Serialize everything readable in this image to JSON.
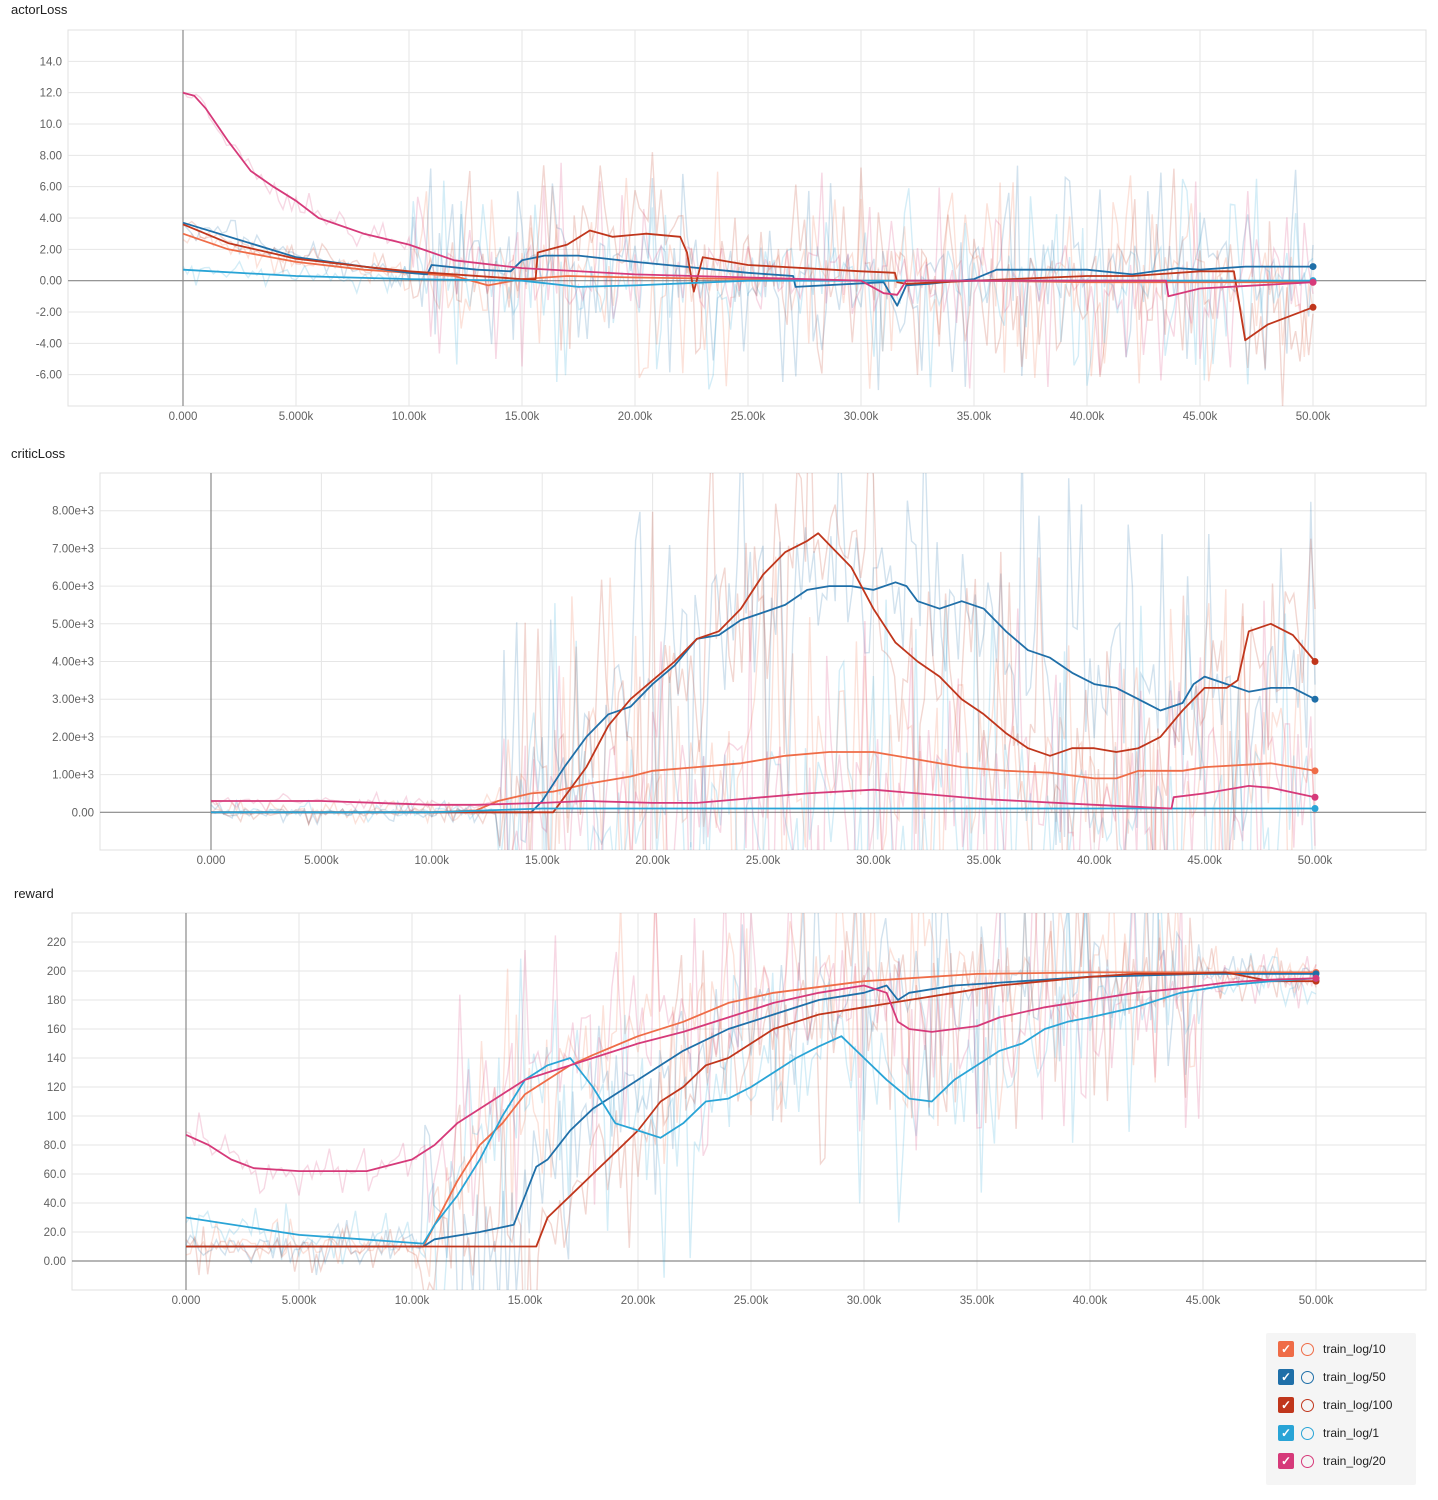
{
  "chart_data": [
    {
      "title": "actorLoss",
      "type": "line",
      "x_ticks": [
        "0.000",
        "5.000k",
        "10.00k",
        "15.00k",
        "20.00k",
        "25.00k",
        "30.00k",
        "35.00k",
        "40.00k",
        "45.00k",
        "50.00k"
      ],
      "y_ticks": [
        "14.0",
        "12.0",
        "10.0",
        "8.00",
        "6.00",
        "4.00",
        "2.00",
        "0.00",
        "-2.00",
        "-4.00",
        "-6.00"
      ],
      "xlim": [
        0,
        50000
      ],
      "ylim": [
        -8,
        16
      ],
      "series": [
        {
          "name": "train_log/10",
          "color": "#ef6c47",
          "x": [
            0,
            2000,
            5000,
            8000,
            10000,
            12000,
            13500,
            15000,
            17000,
            20000,
            25000,
            30000,
            35000,
            40000,
            45000,
            50000
          ],
          "y": [
            3.0,
            2.0,
            1.2,
            0.7,
            0.5,
            0.3,
            -0.3,
            0.1,
            0.3,
            0.2,
            0.1,
            0.0,
            0.0,
            -0.1,
            -0.1,
            -0.1
          ]
        },
        {
          "name": "train_log/50",
          "color": "#1f6fa8",
          "x": [
            0,
            5000,
            10000,
            10800,
            11000,
            13000,
            14500,
            15000,
            16000,
            17500,
            20000,
            25000,
            27000,
            27100,
            31000,
            31600,
            32000,
            33000,
            35000,
            36000,
            40000,
            42000,
            44000,
            45000,
            47000,
            50000
          ],
          "y": [
            3.7,
            1.5,
            0.5,
            0.4,
            1.0,
            0.7,
            0.6,
            1.3,
            1.6,
            1.6,
            1.2,
            0.5,
            0.3,
            -0.4,
            -0.1,
            -1.6,
            -0.3,
            -0.2,
            0.1,
            0.7,
            0.7,
            0.4,
            0.8,
            0.7,
            0.9,
            0.9
          ]
        },
        {
          "name": "train_log/100",
          "color": "#c0361c",
          "x": [
            0,
            2000,
            5000,
            8000,
            10000,
            15000,
            15600,
            15700,
            17000,
            18000,
            19000,
            20500,
            22000,
            22300,
            22600,
            23000,
            25000,
            30000,
            31500,
            31600,
            32000,
            35000,
            40000,
            42000,
            45000,
            46500,
            47000,
            47300,
            48000,
            50000
          ],
          "y": [
            3.6,
            2.4,
            1.4,
            0.9,
            0.6,
            0.1,
            0.1,
            1.8,
            2.3,
            3.2,
            2.8,
            3.0,
            2.8,
            1.8,
            -0.7,
            1.5,
            1.0,
            0.6,
            0.5,
            -0.1,
            -0.2,
            0.0,
            0.3,
            0.3,
            0.6,
            0.6,
            -3.8,
            -3.5,
            -2.8,
            -1.7
          ]
        },
        {
          "name": "train_log/1",
          "color": "#29a4d6",
          "x": [
            0,
            5000,
            10000,
            15000,
            17500,
            20000,
            25000,
            30000,
            35000,
            40000,
            45000,
            50000
          ],
          "y": [
            0.7,
            0.3,
            0.1,
            0.0,
            -0.4,
            -0.3,
            0.0,
            0.0,
            0.0,
            0.0,
            0.0,
            0.0
          ]
        },
        {
          "name": "train_log/20",
          "color": "#d63a7a",
          "x": [
            0,
            500,
            1000,
            2000,
            3000,
            4000,
            5000,
            6000,
            8000,
            10000,
            12000,
            15000,
            20000,
            25000,
            30000,
            31000,
            31600,
            32000,
            35000,
            40000,
            43500,
            43600,
            45000,
            50000
          ],
          "y": [
            12.0,
            11.8,
            11.0,
            8.9,
            7.0,
            6.0,
            5.1,
            4.0,
            3.0,
            2.3,
            1.3,
            0.8,
            0.4,
            0.2,
            0.0,
            -0.8,
            -0.9,
            0.0,
            0.0,
            0.0,
            0.0,
            -1.0,
            -0.5,
            -0.1
          ]
        }
      ]
    },
    {
      "title": "criticLoss",
      "type": "line",
      "x_ticks": [
        "0.000",
        "5.000k",
        "10.00k",
        "15.00k",
        "20.00k",
        "25.00k",
        "30.00k",
        "35.00k",
        "40.00k",
        "45.00k",
        "50.00k"
      ],
      "y_ticks": [
        "8.00e+3",
        "7.00e+3",
        "6.00e+3",
        "5.00e+3",
        "4.00e+3",
        "3.00e+3",
        "2.00e+3",
        "1.00e+3",
        "0.00"
      ],
      "xlim": [
        0,
        50000
      ],
      "ylim": [
        -1000,
        9000
      ],
      "series": [
        {
          "name": "train_log/10",
          "color": "#ef6c47",
          "x": [
            0,
            10000,
            12000,
            13000,
            14500,
            15500,
            17000,
            19000,
            20000,
            22000,
            24000,
            26000,
            28000,
            30000,
            32000,
            34000,
            36000,
            38000,
            40000,
            41000,
            42000,
            44000,
            45000,
            48000,
            50000
          ],
          "y": [
            0,
            0,
            50,
            300,
            500,
            550,
            750,
            950,
            1100,
            1200,
            1300,
            1500,
            1600,
            1600,
            1400,
            1200,
            1100,
            1050,
            900,
            900,
            1100,
            1100,
            1200,
            1300,
            1100
          ]
        },
        {
          "name": "train_log/50",
          "color": "#1f6fa8",
          "x": [
            0,
            14500,
            15000,
            16000,
            17000,
            18000,
            19000,
            20000,
            21000,
            22000,
            23000,
            24000,
            25000,
            26000,
            27000,
            28000,
            29000,
            30000,
            31000,
            31500,
            32000,
            33000,
            34000,
            35000,
            36000,
            37000,
            38000,
            39000,
            40000,
            41000,
            42000,
            43000,
            44000,
            44500,
            45000,
            46000,
            47000,
            48000,
            49000,
            50000
          ],
          "y": [
            0,
            0,
            300,
            1200,
            2000,
            2600,
            2800,
            3400,
            3900,
            4600,
            4700,
            5100,
            5300,
            5500,
            5900,
            6000,
            6000,
            5900,
            6100,
            6000,
            5600,
            5400,
            5600,
            5400,
            4800,
            4300,
            4100,
            3700,
            3400,
            3300,
            3000,
            2700,
            2900,
            3400,
            3600,
            3400,
            3200,
            3300,
            3300,
            3000
          ]
        },
        {
          "name": "train_log/100",
          "color": "#c0361c",
          "x": [
            0,
            15500,
            16000,
            17000,
            18000,
            19000,
            20000,
            21000,
            22000,
            23000,
            24000,
            25000,
            26000,
            27000,
            27500,
            28000,
            29000,
            30000,
            31000,
            32000,
            33000,
            34000,
            35000,
            36000,
            37000,
            38000,
            39000,
            40000,
            41000,
            42000,
            43000,
            44000,
            45000,
            46000,
            46500,
            47000,
            48000,
            49000,
            50000
          ],
          "y": [
            0,
            0,
            400,
            1200,
            2300,
            3000,
            3500,
            4000,
            4600,
            4800,
            5400,
            6300,
            6900,
            7200,
            7400,
            7100,
            6500,
            5400,
            4500,
            4000,
            3600,
            3000,
            2600,
            2100,
            1700,
            1500,
            1700,
            1700,
            1600,
            1700,
            2000,
            2700,
            3300,
            3300,
            3500,
            4800,
            5000,
            4700,
            4000
          ]
        },
        {
          "name": "train_log/1",
          "color": "#29a4d6",
          "x": [
            0,
            10000,
            15000,
            20000,
            30000,
            40000,
            50000
          ],
          "y": [
            0,
            0,
            100,
            100,
            100,
            100,
            100
          ]
        },
        {
          "name": "train_log/20",
          "color": "#d63a7a",
          "x": [
            0,
            5000,
            10000,
            12000,
            15000,
            17000,
            20000,
            22000,
            24000,
            27000,
            30000,
            32000,
            35000,
            40000,
            43500,
            43600,
            45000,
            47000,
            48000,
            50000
          ],
          "y": [
            300,
            300,
            200,
            200,
            250,
            300,
            250,
            250,
            350,
            500,
            600,
            500,
            350,
            200,
            100,
            400,
            500,
            700,
            650,
            400
          ]
        }
      ]
    },
    {
      "title": "reward",
      "type": "line",
      "x_ticks": [
        "0.000",
        "5.000k",
        "10.00k",
        "15.00k",
        "20.00k",
        "25.00k",
        "30.00k",
        "35.00k",
        "40.00k",
        "45.00k",
        "50.00k"
      ],
      "y_ticks": [
        "220",
        "200",
        "180",
        "160",
        "140",
        "120",
        "100",
        "80.0",
        "60.0",
        "40.0",
        "20.0",
        "0.00"
      ],
      "xlim": [
        0,
        50000
      ],
      "ylim": [
        -20,
        240
      ],
      "series": [
        {
          "name": "train_log/10",
          "color": "#ef6c47",
          "x": [
            0,
            10500,
            11000,
            12000,
            13000,
            14000,
            15000,
            16000,
            17000,
            18000,
            20000,
            22000,
            24000,
            26000,
            30000,
            35000,
            40000,
            50000
          ],
          "y": [
            10,
            10,
            25,
            55,
            80,
            95,
            115,
            125,
            135,
            142,
            155,
            165,
            178,
            185,
            193,
            198,
            199,
            199
          ]
        },
        {
          "name": "train_log/50",
          "color": "#1f6fa8",
          "x": [
            0,
            10500,
            11000,
            13000,
            14500,
            15500,
            16000,
            17000,
            18000,
            20000,
            22000,
            24000,
            26000,
            28000,
            30000,
            31000,
            31500,
            32000,
            34000,
            36000,
            40000,
            45000,
            50000
          ],
          "y": [
            10,
            10,
            15,
            20,
            25,
            65,
            70,
            90,
            105,
            125,
            145,
            160,
            170,
            180,
            185,
            190,
            180,
            185,
            190,
            192,
            196,
            198,
            198
          ]
        },
        {
          "name": "train_log/100",
          "color": "#c0361c",
          "x": [
            0,
            15500,
            16000,
            17000,
            18000,
            19000,
            20000,
            21000,
            22000,
            23000,
            24000,
            25000,
            26000,
            27000,
            28000,
            30000,
            32000,
            34000,
            36000,
            38000,
            40000,
            42000,
            44000,
            46000,
            48000,
            50000
          ],
          "y": [
            10,
            10,
            30,
            45,
            60,
            75,
            90,
            110,
            120,
            135,
            140,
            150,
            160,
            165,
            170,
            175,
            180,
            185,
            190,
            193,
            196,
            198,
            198,
            199,
            193,
            193
          ]
        },
        {
          "name": "train_log/1",
          "color": "#29a4d6",
          "x": [
            0,
            5000,
            10500,
            11000,
            12000,
            13000,
            14000,
            15000,
            16000,
            17000,
            18000,
            19000,
            20000,
            21000,
            22000,
            23000,
            24000,
            25000,
            26000,
            27000,
            28000,
            29000,
            30000,
            31000,
            32000,
            33000,
            34000,
            35000,
            36000,
            37000,
            38000,
            39000,
            40000,
            42000,
            44000,
            46000,
            48000,
            50000
          ],
          "y": [
            30,
            18,
            12,
            25,
            45,
            70,
            100,
            125,
            135,
            140,
            120,
            95,
            90,
            85,
            95,
            110,
            112,
            120,
            130,
            140,
            148,
            155,
            140,
            125,
            112,
            110,
            125,
            135,
            145,
            150,
            160,
            165,
            168,
            175,
            185,
            190,
            193,
            195
          ]
        },
        {
          "name": "train_log/20",
          "color": "#d63a7a",
          "x": [
            0,
            1000,
            2000,
            3000,
            5000,
            8000,
            10000,
            11000,
            12000,
            13000,
            14000,
            15000,
            16000,
            17000,
            18000,
            20000,
            22000,
            24000,
            26000,
            28000,
            30000,
            31000,
            31500,
            32000,
            33000,
            34000,
            35000,
            36000,
            38000,
            40000,
            42000,
            44000,
            46000,
            48000,
            50000
          ],
          "y": [
            87,
            80,
            70,
            64,
            62,
            62,
            70,
            80,
            95,
            105,
            115,
            125,
            130,
            135,
            140,
            150,
            158,
            168,
            178,
            185,
            190,
            185,
            165,
            160,
            158,
            160,
            162,
            168,
            175,
            180,
            185,
            188,
            192,
            194,
            195
          ]
        }
      ]
    }
  ],
  "legend": [
    {
      "label": "train_log/10",
      "color": "#ef6c47"
    },
    {
      "label": "train_log/50",
      "color": "#1f6fa8"
    },
    {
      "label": "train_log/100",
      "color": "#c0361c"
    },
    {
      "label": "train_log/1",
      "color": "#29a4d6"
    },
    {
      "label": "train_log/20",
      "color": "#d63a7a"
    }
  ]
}
